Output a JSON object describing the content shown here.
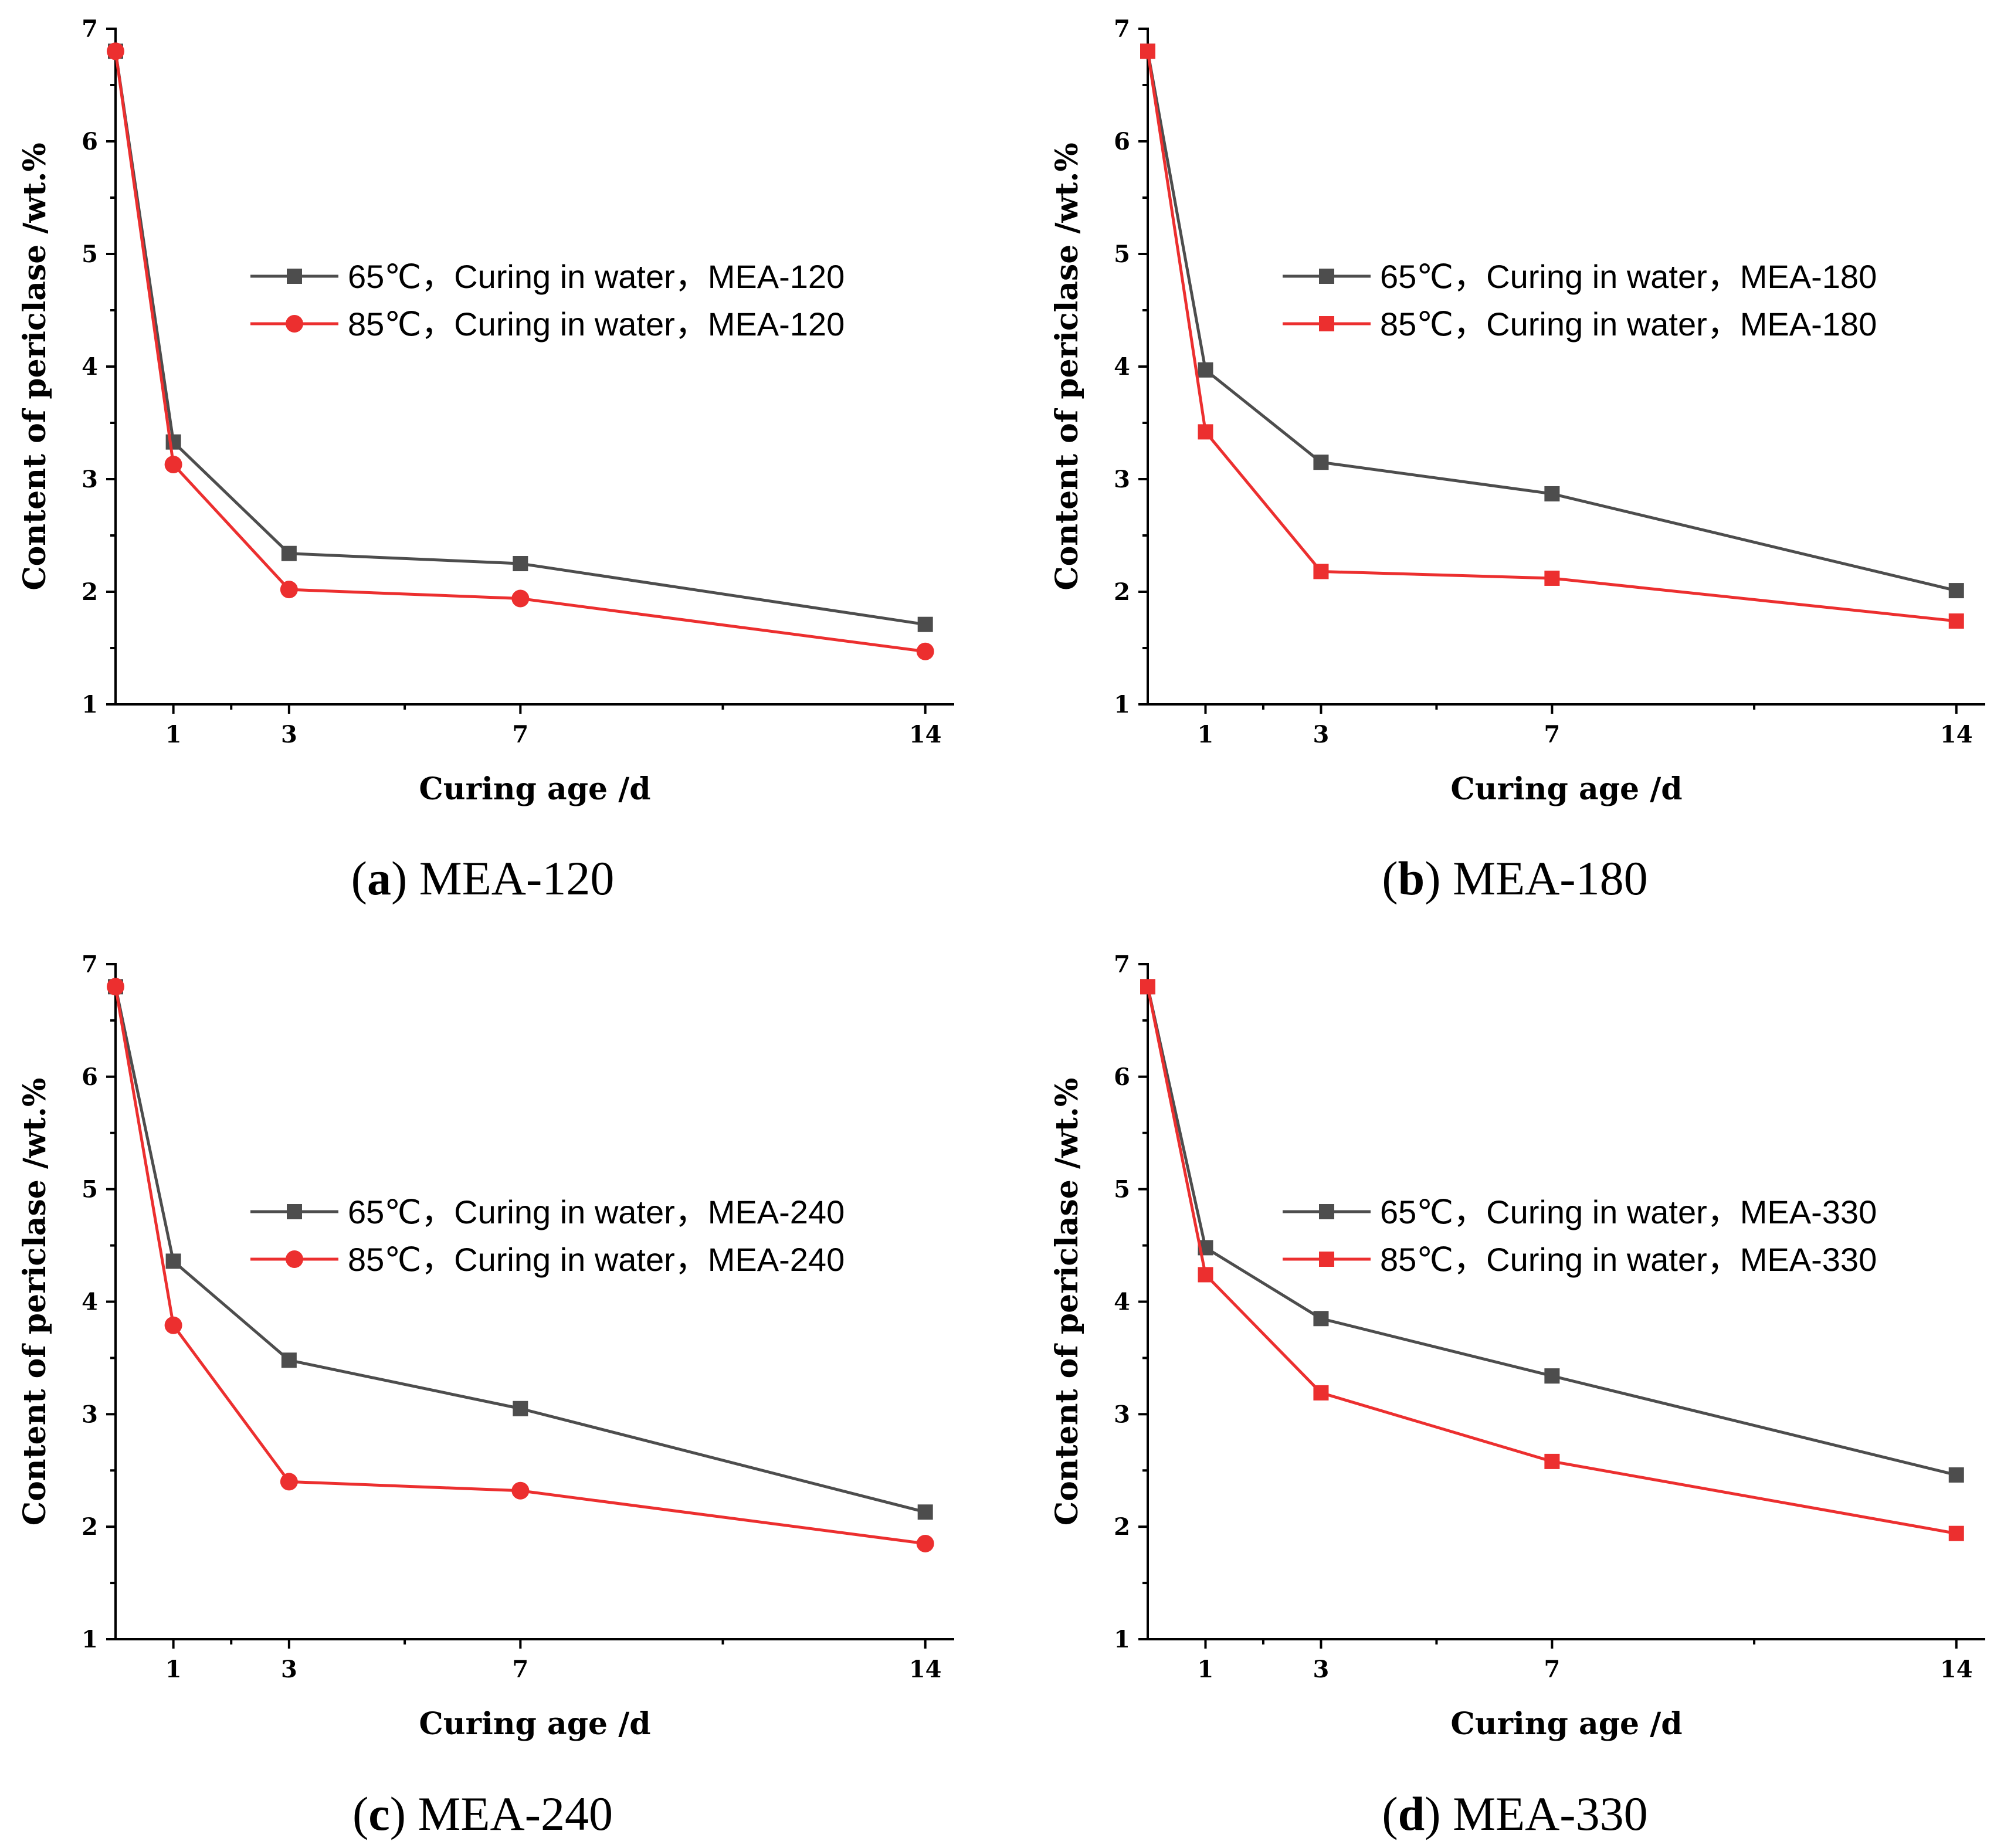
{
  "figure": {
    "colors": {
      "series_65": "#4d4d4d",
      "series_85": "#ec2f2f",
      "axis": "#000000"
    }
  },
  "chart_data": [
    {
      "type": "line",
      "panel_letter": "a",
      "caption": "MEA-120",
      "xlabel": "Curing age /d",
      "ylabel": "Content of periclase /wt.%",
      "xlim": [
        0,
        14.5
      ],
      "ylim": [
        1,
        7
      ],
      "xticks": [
        1,
        3,
        7,
        14
      ],
      "yticks": [
        1,
        2,
        3,
        4,
        5,
        6,
        7
      ],
      "legend_position": "upper-center",
      "series": [
        {
          "name": "65℃，Curing in water，MEA-120",
          "color": "#4d4d4d",
          "marker": "square",
          "x": [
            0,
            1,
            3,
            7,
            14
          ],
          "y": [
            6.8,
            3.33,
            2.34,
            2.25,
            1.71
          ]
        },
        {
          "name": "85℃，Curing in water，MEA-120",
          "color": "#ec2f2f",
          "marker": "circle",
          "x": [
            0,
            1,
            3,
            7,
            14
          ],
          "y": [
            6.8,
            3.13,
            2.02,
            1.94,
            1.47
          ]
        }
      ]
    },
    {
      "type": "line",
      "panel_letter": "b",
      "caption": "MEA-180",
      "xlabel": "Curing age /d",
      "ylabel": "Content of periclase /wt.%",
      "xlim": [
        0,
        14.5
      ],
      "ylim": [
        1,
        7
      ],
      "xticks": [
        1,
        3,
        7,
        14
      ],
      "yticks": [
        1,
        2,
        3,
        4,
        5,
        6,
        7
      ],
      "legend_position": "upper-center",
      "series": [
        {
          "name": "65℃，Curing in water，MEA-180",
          "color": "#4d4d4d",
          "marker": "square",
          "x": [
            0,
            1,
            3,
            7,
            14
          ],
          "y": [
            6.8,
            3.97,
            3.15,
            2.87,
            2.01
          ]
        },
        {
          "name": "85℃，Curing in water，MEA-180",
          "color": "#ec2f2f",
          "marker": "square",
          "x": [
            0,
            1,
            3,
            7,
            14
          ],
          "y": [
            6.8,
            3.42,
            2.18,
            2.12,
            1.74
          ]
        }
      ]
    },
    {
      "type": "line",
      "panel_letter": "c",
      "caption": "MEA-240",
      "xlabel": "Curing age /d",
      "ylabel": "Content of periclase /wt.%",
      "xlim": [
        0,
        14.5
      ],
      "ylim": [
        1,
        7
      ],
      "xticks": [
        1,
        3,
        7,
        14
      ],
      "yticks": [
        1,
        2,
        3,
        4,
        5,
        6,
        7
      ],
      "legend_position": "upper-center",
      "series": [
        {
          "name": "65℃，Curing in water，MEA-240",
          "color": "#4d4d4d",
          "marker": "square",
          "x": [
            0,
            1,
            3,
            7,
            14
          ],
          "y": [
            6.8,
            4.36,
            3.48,
            3.05,
            2.13
          ]
        },
        {
          "name": "85℃，Curing in water，MEA-240",
          "color": "#ec2f2f",
          "marker": "circle",
          "x": [
            0,
            1,
            3,
            7,
            14
          ],
          "y": [
            6.8,
            3.79,
            2.4,
            2.32,
            1.85
          ]
        }
      ]
    },
    {
      "type": "line",
      "panel_letter": "d",
      "caption": "MEA-330",
      "xlabel": "Curing age /d",
      "ylabel": "Content of periclase /wt.%",
      "xlim": [
        0,
        14.5
      ],
      "ylim": [
        1,
        7
      ],
      "xticks": [
        1,
        3,
        7,
        14
      ],
      "yticks": [
        1,
        2,
        3,
        4,
        5,
        6,
        7
      ],
      "legend_position": "upper-center",
      "series": [
        {
          "name": "65℃，Curing in water，MEA-330",
          "color": "#4d4d4d",
          "marker": "square",
          "x": [
            0,
            1,
            3,
            7,
            14
          ],
          "y": [
            6.8,
            4.48,
            3.85,
            3.34,
            2.46
          ]
        },
        {
          "name": "85℃，Curing in water，MEA-330",
          "color": "#ec2f2f",
          "marker": "square",
          "x": [
            0,
            1,
            3,
            7,
            14
          ],
          "y": [
            6.8,
            4.24,
            3.19,
            2.58,
            1.94
          ]
        }
      ]
    }
  ]
}
